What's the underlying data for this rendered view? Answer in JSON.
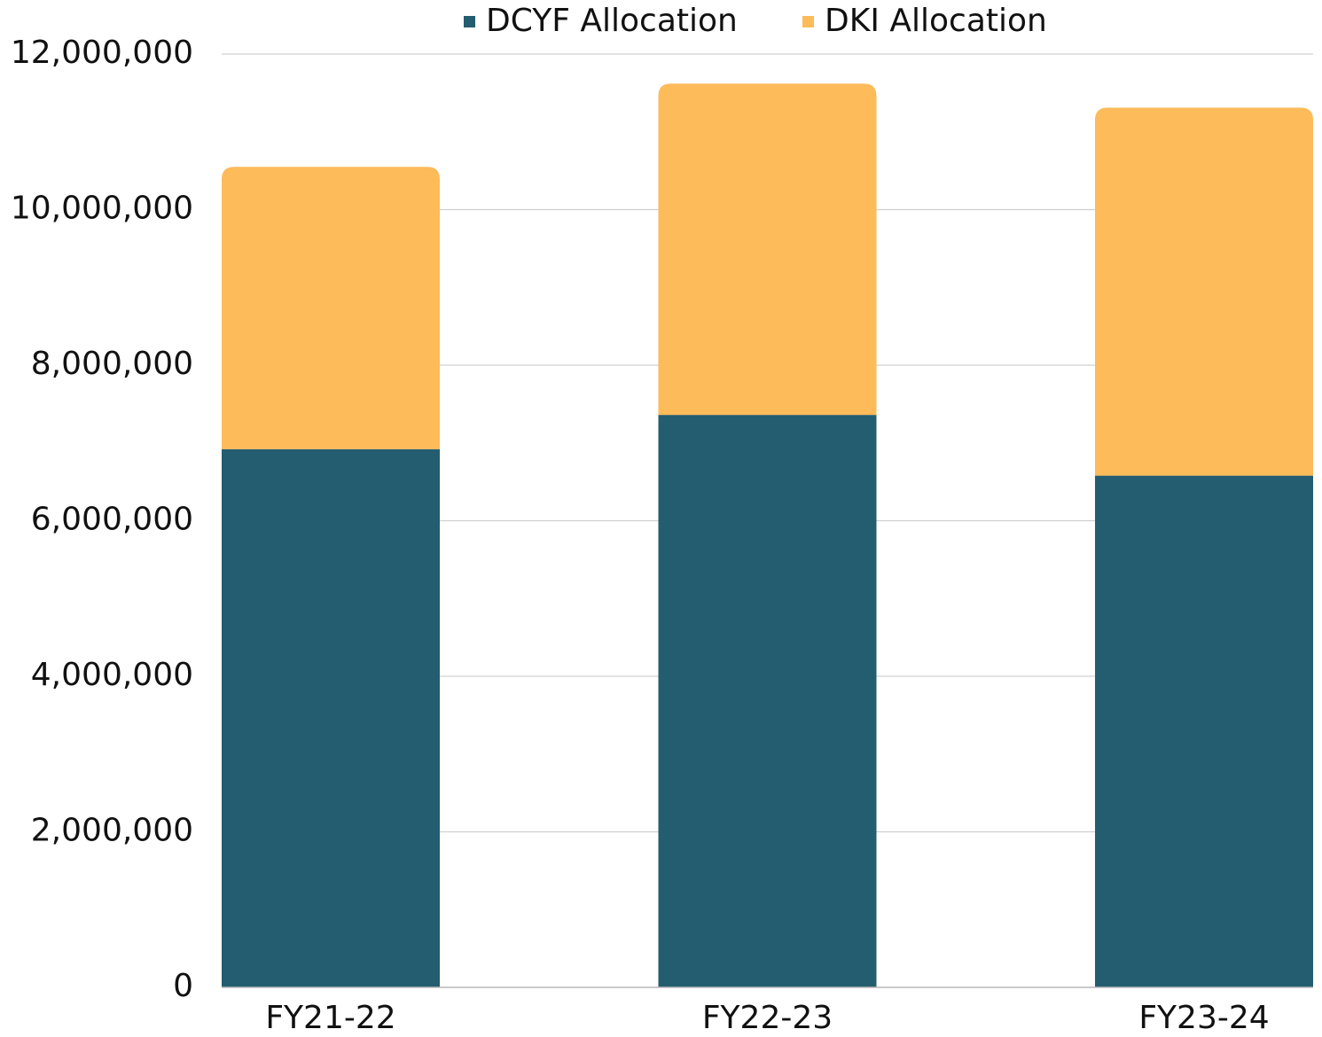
{
  "chart_data": {
    "type": "stacked-bar",
    "categories": [
      "FY21-22",
      "FY22-23",
      "FY23-24"
    ],
    "series": [
      {
        "name": "DCYF Allocation",
        "color": "#245d6f",
        "values": [
          6920000,
          7360000,
          6580000
        ]
      },
      {
        "name": "DKI Allocation",
        "color": "#fdbb5a",
        "values": [
          3630000,
          4260000,
          4730000
        ]
      }
    ],
    "ylim": [
      0,
      12000000
    ],
    "yticks": [
      0,
      {
        "value": 2000000,
        "label": "2,000,000"
      },
      {
        "value": 4000000,
        "label": "4,000,000"
      },
      {
        "value": 6000000,
        "label": "6,000,000"
      },
      {
        "value": 8000000,
        "label": "8,000,000"
      },
      {
        "value": 10000000,
        "label": "10,000,000"
      },
      {
        "value": 12000000,
        "label": "12,000,000"
      }
    ],
    "grid": true,
    "legend": "top"
  }
}
